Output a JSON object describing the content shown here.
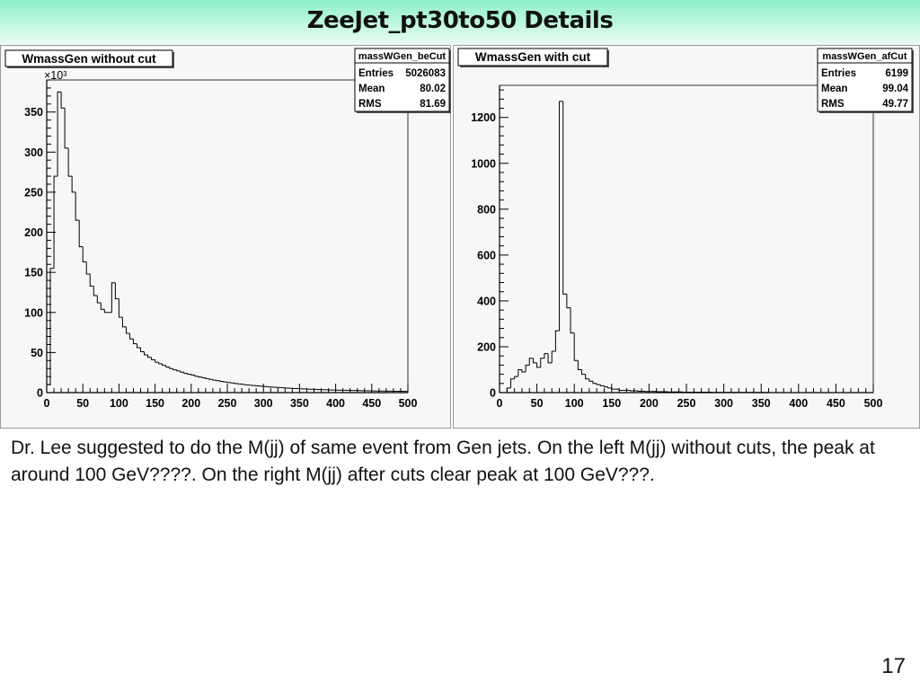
{
  "slide": {
    "title": "ZeeJet_pt30to50 Details",
    "description": "Dr. Lee suggested to do the M(jj) of same event from Gen jets. On the left M(jj) without cuts, the peak at around 100 GeV????. On the right M(jj) after cuts clear peak at 100 GeV???.",
    "page_number": "17"
  },
  "chart_data": [
    {
      "type": "histogram",
      "title": "WmassGen without cut",
      "stats_box": {
        "name": "massWGen_beCut",
        "rows": [
          {
            "label": "Entries",
            "value": "5026083"
          },
          {
            "label": "Mean",
            "value": "80.02"
          },
          {
            "label": "RMS",
            "value": "81.69"
          }
        ]
      },
      "y_multiplier": "×10³",
      "xlim": [
        0,
        500
      ],
      "ylim": [
        0,
        390
      ],
      "x_ticks": [
        0,
        50,
        100,
        150,
        200,
        250,
        300,
        350,
        400,
        450,
        500
      ],
      "y_ticks": [
        0,
        50,
        100,
        150,
        200,
        250,
        300,
        350
      ],
      "bin_width": 5,
      "values": [
        10,
        155,
        270,
        375,
        355,
        305,
        270,
        250,
        215,
        182,
        163,
        148,
        133,
        121,
        112,
        104,
        100,
        100,
        137,
        117,
        94,
        82,
        74,
        67,
        61,
        56,
        51,
        47,
        44,
        41,
        38,
        36,
        34,
        32,
        30,
        28.5,
        27,
        25.5,
        24,
        23,
        22,
        20.5,
        19.5,
        18.5,
        17.5,
        16.5,
        15.5,
        14.8,
        14,
        13.3,
        12.6,
        12,
        11.4,
        10.8,
        10.2,
        9.7,
        9.2,
        8.8,
        8.4,
        8,
        7.6,
        7.2,
        6.9,
        6.6,
        6.3,
        6,
        5.7,
        5.5,
        5.2,
        5,
        4.8,
        4.6,
        4.4,
        4.2,
        4,
        3.8,
        3.7,
        3.5,
        3.4,
        3.2,
        3.1,
        3,
        2.9,
        2.8,
        2.7,
        2.6,
        2.5,
        2.4,
        2.3,
        2.2,
        2.1,
        2,
        1.95,
        1.9,
        1.85,
        1.8,
        1.75,
        1.7,
        1.65,
        1.6
      ]
    },
    {
      "type": "histogram",
      "title": "WmassGen with cut",
      "stats_box": {
        "name": "massWGen_afCut",
        "rows": [
          {
            "label": "Entries",
            "value": "6199"
          },
          {
            "label": "Mean",
            "value": "99.04"
          },
          {
            "label": "RMS",
            "value": "49.77"
          }
        ]
      },
      "y_multiplier": "",
      "xlim": [
        0,
        500
      ],
      "ylim": [
        0,
        1340
      ],
      "x_ticks": [
        0,
        50,
        100,
        150,
        200,
        250,
        300,
        350,
        400,
        450,
        500
      ],
      "y_ticks": [
        0,
        200,
        400,
        600,
        800,
        1000,
        1200
      ],
      "bin_width": 5,
      "values": [
        0,
        0,
        20,
        60,
        70,
        100,
        90,
        120,
        150,
        130,
        110,
        150,
        170,
        130,
        180,
        270,
        1270,
        430,
        370,
        260,
        140,
        100,
        80,
        60,
        50,
        40,
        35,
        30,
        25,
        20,
        15,
        15,
        10,
        10,
        10,
        8,
        8,
        6,
        6,
        5,
        5,
        5,
        4,
        4,
        4,
        3,
        3,
        3,
        3,
        2,
        2,
        2,
        2,
        2,
        2,
        2,
        2,
        1,
        1,
        1,
        1,
        1,
        1,
        1,
        1,
        1,
        1,
        1,
        1,
        1,
        1,
        1,
        0,
        0,
        0,
        0,
        0,
        0,
        0,
        0,
        0,
        0,
        0,
        0,
        0,
        0,
        0,
        0,
        0,
        0,
        0,
        0,
        0,
        0,
        0,
        0,
        0,
        0,
        0,
        0
      ]
    }
  ]
}
